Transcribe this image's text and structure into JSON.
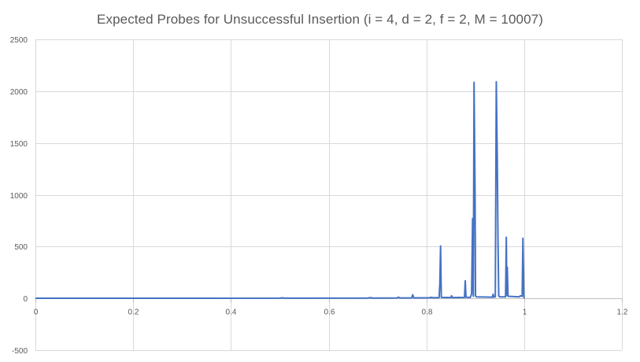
{
  "chart_data": {
    "type": "line",
    "title": "Expected Probes for Unsuccessful Insertion (i = 4, d = 2, f = 2, M = 10007)",
    "xlabel": "",
    "ylabel": "",
    "xlim": [
      0,
      1.2
    ],
    "ylim": [
      -500,
      2500
    ],
    "x_ticks": [
      0,
      0.2,
      0.4,
      0.6,
      0.8,
      1,
      1.2
    ],
    "x_tick_labels": [
      "0",
      "0.2",
      "0.4",
      "0.6",
      "0.8",
      "1",
      "1.2"
    ],
    "y_ticks": [
      -500,
      0,
      500,
      1000,
      1500,
      2000,
      2500
    ],
    "y_tick_labels": [
      "-500",
      "0",
      "500",
      "1000",
      "1500",
      "2000",
      "2500"
    ],
    "grid": true,
    "legend": "none",
    "series": [
      {
        "color": "#4472c4",
        "points": [
          [
            0,
            1
          ],
          [
            0.5,
            2
          ],
          [
            0.505,
            5
          ],
          [
            0.51,
            2
          ],
          [
            0.68,
            3
          ],
          [
            0.685,
            7
          ],
          [
            0.69,
            3
          ],
          [
            0.74,
            4
          ],
          [
            0.743,
            12
          ],
          [
            0.746,
            4
          ],
          [
            0.77,
            5
          ],
          [
            0.772,
            35
          ],
          [
            0.774,
            5
          ],
          [
            0.805,
            6
          ],
          [
            0.81,
            10
          ],
          [
            0.815,
            6
          ],
          [
            0.826,
            8
          ],
          [
            0.8275,
            145
          ],
          [
            0.829,
            505
          ],
          [
            0.8305,
            10
          ],
          [
            0.85,
            8
          ],
          [
            0.8515,
            25
          ],
          [
            0.853,
            8
          ],
          [
            0.878,
            10
          ],
          [
            0.8795,
            170
          ],
          [
            0.881,
            10
          ],
          [
            0.89,
            10
          ],
          [
            0.8925,
            45
          ],
          [
            0.8945,
            770
          ],
          [
            0.896,
            20
          ],
          [
            0.8975,
            2085
          ],
          [
            0.8995,
            1030
          ],
          [
            0.9005,
            25
          ],
          [
            0.902,
            15
          ],
          [
            0.935,
            12
          ],
          [
            0.9365,
            40
          ],
          [
            0.938,
            12
          ],
          [
            0.941,
            15
          ],
          [
            0.943,
            2090
          ],
          [
            0.945,
            1350
          ],
          [
            0.9465,
            550
          ],
          [
            0.948,
            25
          ],
          [
            0.95,
            15
          ],
          [
            0.962,
            15
          ],
          [
            0.9635,
            590
          ],
          [
            0.9645,
            30
          ],
          [
            0.9655,
            300
          ],
          [
            0.967,
            20
          ],
          [
            0.99,
            15
          ],
          [
            0.992,
            25
          ],
          [
            0.996,
            20
          ],
          [
            0.9975,
            580
          ],
          [
            0.9995,
            20
          ],
          [
            1.0,
            0
          ]
        ]
      }
    ]
  }
}
